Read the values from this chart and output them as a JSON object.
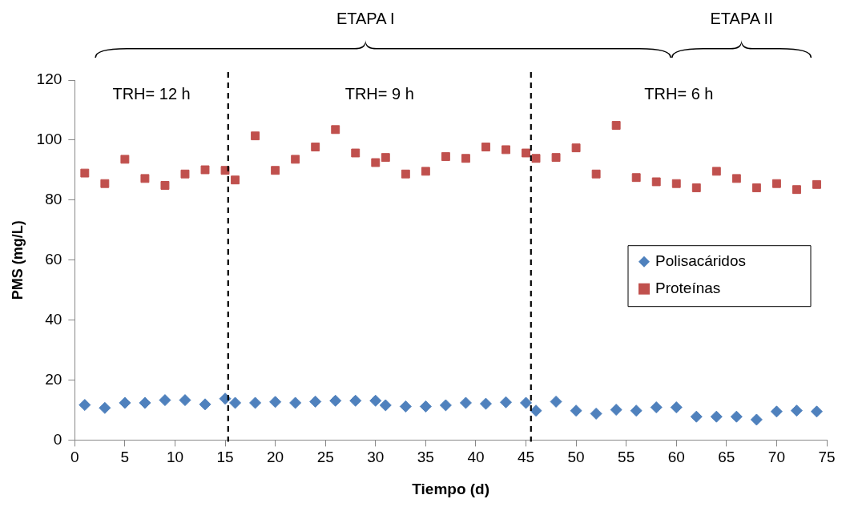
{
  "chart_data": {
    "type": "scatter",
    "xlabel": "Tiempo (d)",
    "ylabel": "PMS (mg/L)",
    "x": [
      1,
      3,
      5,
      7,
      9,
      11,
      13,
      15,
      16,
      18,
      20,
      22,
      24,
      26,
      28,
      30,
      31,
      33,
      35,
      37,
      39,
      41,
      43,
      45,
      46,
      48,
      50,
      52,
      54,
      56,
      58,
      60,
      62,
      64,
      66,
      68,
      70,
      72,
      74
    ],
    "series": [
      {
        "name": "Polisacáridos",
        "color": "#4f81bd",
        "marker": "diamond",
        "values": [
          11.7,
          10.7,
          12.4,
          12.4,
          13.3,
          13.3,
          11.9,
          13.8,
          12.4,
          12.4,
          12.7,
          12.4,
          12.8,
          13.1,
          13.1,
          13.1,
          11.6,
          11.2,
          11.2,
          11.6,
          12.4,
          12.1,
          12.6,
          12.4,
          9.8,
          12.8,
          9.8,
          8.8,
          10.1,
          9.8,
          10.9,
          10.9,
          7.8,
          7.8,
          7.8,
          6.8,
          9.5,
          9.8,
          9.5
        ]
      },
      {
        "name": "Proteínas",
        "color": "#c0504d",
        "marker": "square",
        "values": [
          89,
          85.5,
          93.6,
          87.2,
          84.9,
          88.7,
          90.1,
          89.9,
          86.7,
          101.4,
          89.9,
          93.6,
          97.7,
          103.5,
          95.7,
          92.5,
          94.2,
          88.7,
          89.6,
          94.5,
          93.9,
          97.7,
          96.8,
          95.7,
          93.9,
          94.2,
          97.4,
          88.7,
          104.9,
          87.5,
          86.1,
          85.5,
          84.1,
          89.6,
          87.2,
          84.1,
          85.5,
          83.5,
          85.2
        ]
      }
    ],
    "xlim": [
      0,
      75
    ],
    "xticks": [
      0,
      5,
      10,
      15,
      20,
      25,
      30,
      35,
      40,
      45,
      50,
      55,
      60,
      65,
      70,
      75
    ],
    "ylim": [
      0,
      120
    ],
    "yticks": [
      0,
      20,
      40,
      60,
      80,
      100,
      120
    ],
    "ref_lines": [
      {
        "axis": "x",
        "value": 15.3,
        "line_style": "dashed",
        "color": "#000000"
      },
      {
        "axis": "x",
        "value": 45.5,
        "line_style": "dashed",
        "color": "#000000"
      }
    ],
    "annotations": [
      "TRH= 12 h",
      "TRH= 9 h",
      "TRH= 6 h",
      "ETAPA I",
      "ETAPA II"
    ],
    "grid": false,
    "legend": "right"
  }
}
